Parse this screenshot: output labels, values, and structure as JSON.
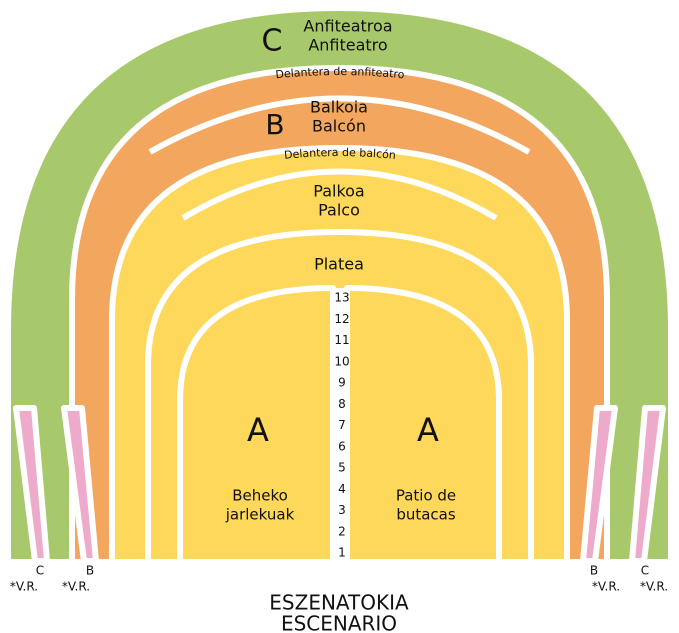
{
  "sections": {
    "anfiteatro": {
      "letter": "C",
      "label_eu": "Anfiteatroa",
      "label_es": "Anfiteatro"
    },
    "delantera_anfiteatro": "Delantera de anfiteatro",
    "balcon": {
      "letter": "B",
      "label_eu": "Balkoia",
      "label_es": "Balcón"
    },
    "delantera_balcon": "Delantera de balcón",
    "palco": {
      "label_eu": "Palkoa",
      "label_es": "Palco"
    },
    "platea": "Platea",
    "patio_left": {
      "letter": "A",
      "label": [
        "Beheko",
        "jarlekuak"
      ]
    },
    "patio_right": {
      "letter": "A",
      "label": [
        "Patio de",
        "butacas"
      ]
    }
  },
  "rows": [
    13,
    12,
    11,
    10,
    9,
    8,
    7,
    6,
    5,
    4,
    3,
    2,
    1
  ],
  "side_labels": [
    {
      "letter": "C",
      "note": "*V.R."
    },
    {
      "letter": "B",
      "note": "*V.R."
    },
    {
      "letter": "B",
      "note": "*V.R."
    },
    {
      "letter": "C",
      "note": "*V.R."
    }
  ],
  "stage": [
    "ESZENATOKIA",
    "ESCENARIO"
  ]
}
